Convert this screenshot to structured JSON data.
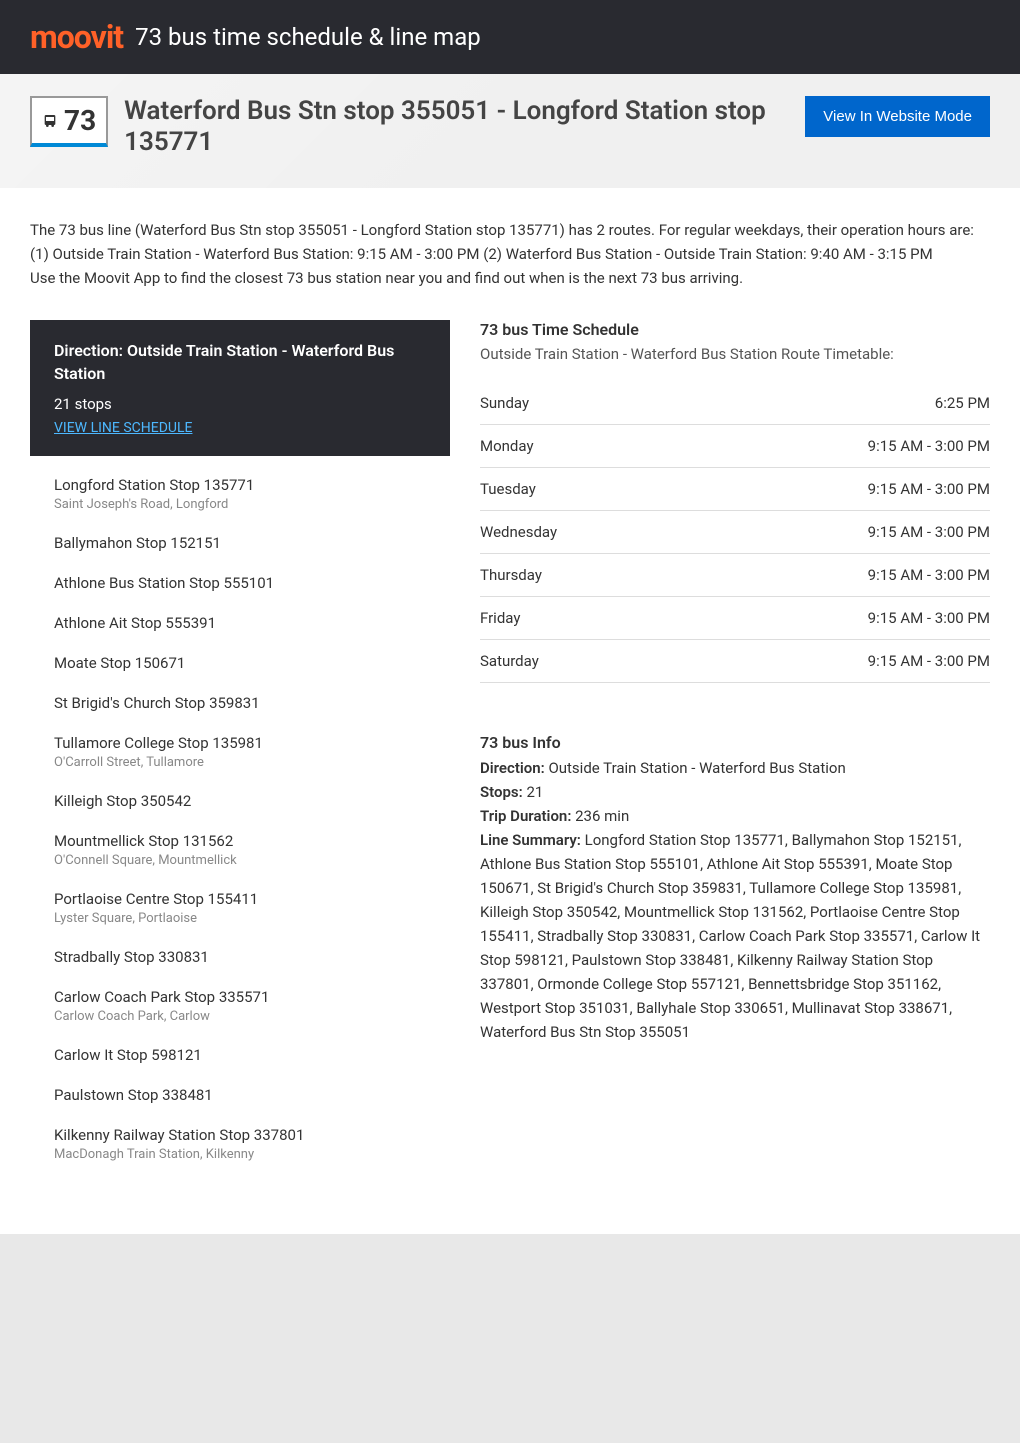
{
  "header": {
    "logo_text": "moovit",
    "title": "73 bus time schedule & line map"
  },
  "route": {
    "number": "73",
    "title": "Waterford Bus Stn stop 355051 - Longford Station stop 135771",
    "website_mode_label": "View In Website Mode"
  },
  "description": {
    "line1": "The 73 bus line (Waterford Bus Stn stop 355051 - Longford Station stop 135771) has 2 routes. For regular weekdays, their operation hours are:",
    "line2": "(1) Outside Train Station - Waterford Bus Station: 9:15 AM - 3:00 PM (2) Waterford Bus Station - Outside Train Station: 9:40 AM - 3:15 PM",
    "line3": "Use the Moovit App to find the closest 73 bus station near you and find out when is the next 73 bus arriving."
  },
  "direction": {
    "title": "Direction: Outside Train Station - Waterford Bus Station",
    "stops_count": "21 stops",
    "view_schedule_label": "VIEW LINE SCHEDULE"
  },
  "stops": [
    {
      "name": "Longford Station Stop 135771",
      "subtitle": "Saint Joseph's Road, Longford"
    },
    {
      "name": "Ballymahon Stop 152151",
      "subtitle": ""
    },
    {
      "name": "Athlone Bus Station Stop 555101",
      "subtitle": ""
    },
    {
      "name": "Athlone Ait Stop 555391",
      "subtitle": ""
    },
    {
      "name": "Moate Stop 150671",
      "subtitle": ""
    },
    {
      "name": "St Brigid's Church Stop 359831",
      "subtitle": ""
    },
    {
      "name": "Tullamore College Stop 135981",
      "subtitle": "O'Carroll Street, Tullamore"
    },
    {
      "name": "Killeigh Stop 350542",
      "subtitle": ""
    },
    {
      "name": "Mountmellick Stop 131562",
      "subtitle": "O'Connell Square, Mountmellick"
    },
    {
      "name": "Portlaoise Centre Stop 155411",
      "subtitle": "Lyster Square, Portlaoise"
    },
    {
      "name": "Stradbally Stop 330831",
      "subtitle": ""
    },
    {
      "name": "Carlow Coach Park Stop 335571",
      "subtitle": "Carlow Coach Park, Carlow"
    },
    {
      "name": "Carlow It Stop 598121",
      "subtitle": ""
    },
    {
      "name": "Paulstown Stop 338481",
      "subtitle": ""
    },
    {
      "name": "Kilkenny Railway Station Stop 337801",
      "subtitle": "MacDonagh Train Station, Kilkenny"
    }
  ],
  "schedule": {
    "title": "73 bus Time Schedule",
    "subtitle": "Outside Train Station - Waterford Bus Station Route Timetable:",
    "rows": [
      {
        "day": "Sunday",
        "time": "6:25 PM"
      },
      {
        "day": "Monday",
        "time": "9:15 AM - 3:00 PM"
      },
      {
        "day": "Tuesday",
        "time": "9:15 AM - 3:00 PM"
      },
      {
        "day": "Wednesday",
        "time": "9:15 AM - 3:00 PM"
      },
      {
        "day": "Thursday",
        "time": "9:15 AM - 3:00 PM"
      },
      {
        "day": "Friday",
        "time": "9:15 AM - 3:00 PM"
      },
      {
        "day": "Saturday",
        "time": "9:15 AM - 3:00 PM"
      }
    ]
  },
  "info": {
    "title": "73 bus Info",
    "direction_label": "Direction:",
    "direction_value": " Outside Train Station - Waterford Bus Station",
    "stops_label": "Stops:",
    "stops_value": " 21",
    "duration_label": "Trip Duration:",
    "duration_value": " 236 min",
    "summary_label": "Line Summary:",
    "summary_value": " Longford Station Stop 135771, Ballymahon Stop 152151, Athlone Bus Station Stop 555101, Athlone Ait Stop 555391, Moate Stop 150671, St Brigid's Church Stop 359831, Tullamore College Stop 135981, Killeigh Stop 350542, Mountmellick Stop 131562, Portlaoise Centre Stop 155411, Stradbally Stop 330831, Carlow Coach Park Stop 335571, Carlow It Stop 598121, Paulstown Stop 338481, Kilkenny Railway Station Stop 337801, Ormonde College Stop 557121, Bennettsbridge Stop 351162, Westport Stop 351031, Ballyhale Stop 330651, Mullinavat Stop 338671, Waterford Bus Stn Stop 355051"
  },
  "colors": {
    "header_bg": "#292a30",
    "logo_color": "#ff6128",
    "accent_blue": "#0089d6",
    "button_blue": "#0066cc",
    "link_blue": "#4db8ff",
    "body_bg": "#e8e8e8",
    "content_bg": "#ffffff"
  }
}
